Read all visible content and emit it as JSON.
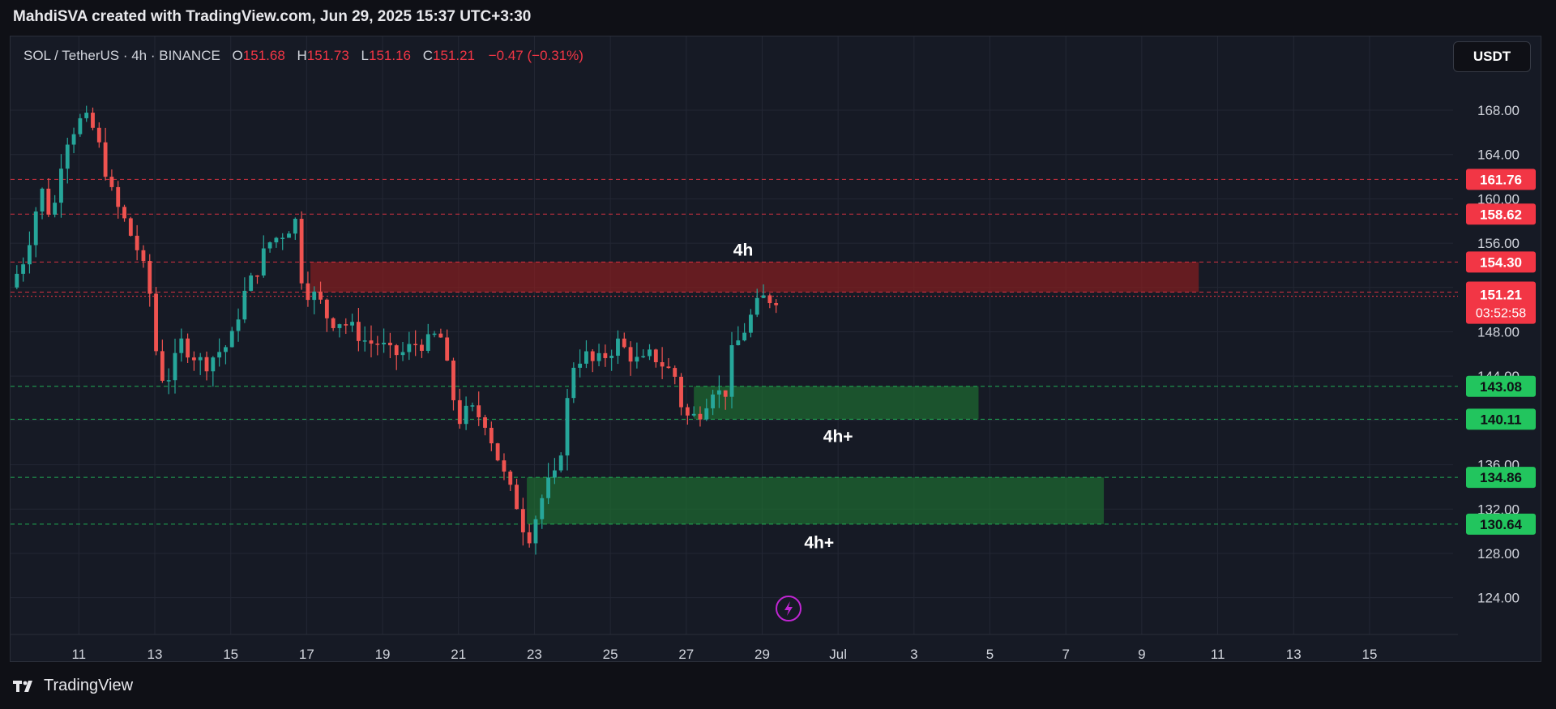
{
  "caption": "MahdiSVA created with TradingView.com, Jun 29, 2025 15:37 UTC+3:30",
  "legend": {
    "symbol": "SOL / TetherUS · 4h · BINANCE",
    "open_label": "O",
    "open": "151.68",
    "high_label": "H",
    "high": "151.73",
    "low_label": "L",
    "low": "151.16",
    "close_label": "C",
    "close": "151.21",
    "change": "−0.47 (−0.31%)"
  },
  "currency_button": "USDT",
  "footer_brand": "TradingView",
  "colors": {
    "up": "#26a69a",
    "down": "#ef5350",
    "bg": "#161a25",
    "grid": "#232734",
    "red_label": "#f23645",
    "green_label": "#22c55e"
  },
  "icons": {
    "logo": "tradingview-logo-icon",
    "lightning": "lightning-icon"
  },
  "chart_data": {
    "type": "candlestick",
    "symbol": "SOL / TetherUS",
    "timeframe": "4h",
    "exchange": "BINANCE",
    "y_range": [
      122,
      171
    ],
    "x_range": [
      9.2,
      16.5
    ],
    "y_ticks": [
      "124.00",
      "128.00",
      "132.00",
      "136.00",
      "140.00",
      "144.00",
      "148.00",
      "152.00",
      "156.00",
      "160.00",
      "164.00",
      "168.00"
    ],
    "y_tick_values": [
      124,
      128,
      132,
      136,
      140,
      144,
      148,
      152,
      156,
      160,
      164,
      168
    ],
    "x_ticks": [
      {
        "label": "11",
        "t": 11
      },
      {
        "label": "13",
        "t": 13
      },
      {
        "label": "15",
        "t": 15
      },
      {
        "label": "17",
        "t": 17
      },
      {
        "label": "19",
        "t": 19
      },
      {
        "label": "21",
        "t": 21
      },
      {
        "label": "23",
        "t": 23
      },
      {
        "label": "25",
        "t": 25
      },
      {
        "label": "27",
        "t": 27
      },
      {
        "label": "29",
        "t": 29
      },
      {
        "label": "Jul",
        "t": 31
      },
      {
        "label": "3",
        "t": 33
      },
      {
        "label": "5",
        "t": 35
      },
      {
        "label": "7",
        "t": 37
      },
      {
        "label": "9",
        "t": 39
      },
      {
        "label": "11",
        "t": 41
      },
      {
        "label": "13",
        "t": 43
      },
      {
        "label": "15",
        "t": 45
      }
    ],
    "price_path": [
      [
        9.2,
        152
      ],
      [
        9.6,
        155
      ],
      [
        10.0,
        161
      ],
      [
        10.3,
        158
      ],
      [
        10.6,
        165
      ],
      [
        11.0,
        167
      ],
      [
        11.3,
        167
      ],
      [
        11.6,
        164
      ],
      [
        11.9,
        160
      ],
      [
        12.2,
        158
      ],
      [
        12.6,
        155
      ],
      [
        12.9,
        151
      ],
      [
        13.1,
        144
      ],
      [
        13.4,
        144
      ],
      [
        13.7,
        147
      ],
      [
        14.0,
        146
      ],
      [
        14.3,
        145
      ],
      [
        14.6,
        146
      ],
      [
        15.0,
        147
      ],
      [
        15.3,
        151
      ],
      [
        15.6,
        153
      ],
      [
        16.0,
        156
      ],
      [
        16.4,
        157
      ],
      [
        16.7,
        158
      ],
      [
        16.9,
        152
      ],
      [
        17.3,
        151
      ],
      [
        17.6,
        149
      ],
      [
        17.9,
        149
      ],
      [
        18.3,
        148
      ],
      [
        18.6,
        147
      ],
      [
        18.9,
        147
      ],
      [
        19.2,
        146
      ],
      [
        19.5,
        146
      ],
      [
        19.9,
        147
      ],
      [
        20.2,
        147
      ],
      [
        20.5,
        148
      ],
      [
        20.8,
        143
      ],
      [
        21.0,
        140
      ],
      [
        21.3,
        141
      ],
      [
        21.7,
        140
      ],
      [
        22.0,
        137
      ],
      [
        22.3,
        134
      ],
      [
        22.6,
        132
      ],
      [
        22.8,
        129
      ],
      [
        23.0,
        131
      ],
      [
        23.3,
        134
      ],
      [
        23.6,
        135
      ],
      [
        23.8,
        140
      ],
      [
        24.0,
        145
      ],
      [
        24.3,
        146
      ],
      [
        24.6,
        145
      ],
      [
        24.9,
        146
      ],
      [
        25.2,
        147
      ],
      [
        25.5,
        146
      ],
      [
        25.8,
        145
      ],
      [
        26.1,
        146
      ],
      [
        26.4,
        145
      ],
      [
        26.7,
        144
      ],
      [
        26.9,
        141
      ],
      [
        27.1,
        140
      ],
      [
        27.4,
        141
      ],
      [
        27.7,
        143
      ],
      [
        28.0,
        142
      ],
      [
        28.2,
        146
      ],
      [
        28.5,
        148
      ],
      [
        28.8,
        150
      ],
      [
        29.0,
        151
      ],
      [
        29.2,
        151
      ],
      [
        29.5,
        151.2
      ]
    ],
    "levels": [
      {
        "price": 161.76,
        "label": "161.76",
        "kind": "resistance",
        "color": "#f23645"
      },
      {
        "price": 158.62,
        "label": "158.62",
        "kind": "resistance",
        "color": "#f23645"
      },
      {
        "price": 154.3,
        "label": "154.30",
        "kind": "resistance",
        "color": "#f23645"
      },
      {
        "price": 151.58,
        "label": "151.58",
        "kind": "resistance",
        "color": "#f23645"
      },
      {
        "price": 143.08,
        "label": "143.08",
        "kind": "support",
        "color": "#22c55e"
      },
      {
        "price": 140.11,
        "label": "140.11",
        "kind": "support",
        "color": "#22c55e"
      },
      {
        "price": 134.86,
        "label": "134.86",
        "kind": "support",
        "color": "#22c55e"
      },
      {
        "price": 130.64,
        "label": "130.64",
        "kind": "support",
        "color": "#22c55e"
      }
    ],
    "current_price": {
      "label": "151.21",
      "countdown": "03:52:58",
      "price": 151.21
    },
    "zones": [
      {
        "name": "4h",
        "kind": "supply",
        "t_start": 17.1,
        "t_end": 40.5,
        "top": 154.3,
        "bottom": 151.58,
        "label_t": 28.5,
        "label_price": 155.3
      },
      {
        "name": "4h+",
        "kind": "demand",
        "t_start": 27.2,
        "t_end": 34.7,
        "top": 143.08,
        "bottom": 140.11,
        "label_t": 31.0,
        "label_price": 138.5
      },
      {
        "name": "4h+",
        "kind": "demand",
        "t_start": 22.8,
        "t_end": 38.0,
        "top": 134.86,
        "bottom": 130.64,
        "label_t": 30.5,
        "label_price": 128.9
      }
    ]
  }
}
